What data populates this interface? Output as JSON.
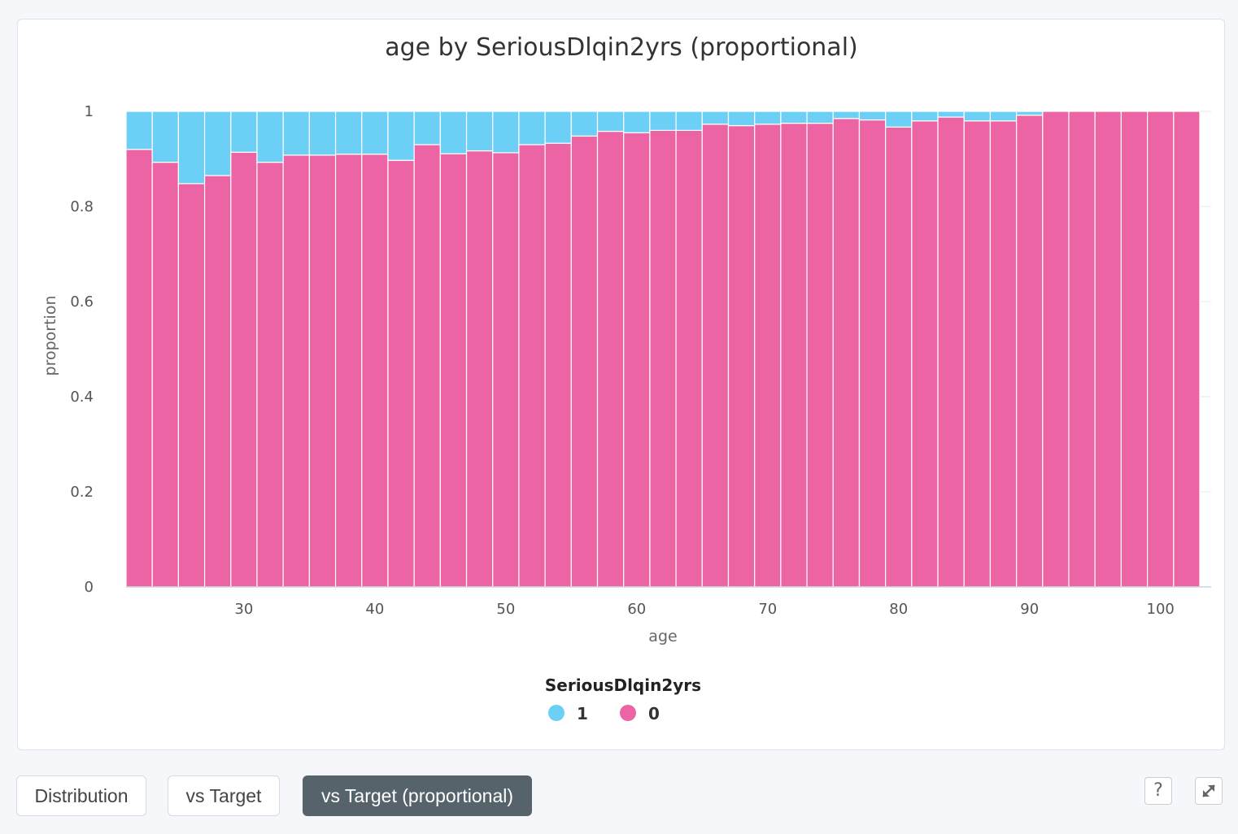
{
  "chart_data": {
    "type": "bar",
    "stacked": true,
    "normalized": true,
    "title": "age by SeriousDlqin2yrs (proportional)",
    "xlabel": "age",
    "ylabel": "proportion",
    "xlim": [
      21,
      103
    ],
    "ylim": [
      0,
      1
    ],
    "x_ticks": [
      30,
      40,
      50,
      60,
      70,
      80,
      90,
      100
    ],
    "y_ticks": [
      0,
      0.2,
      0.4,
      0.6,
      0.8,
      1
    ],
    "y_tick_labels": [
      "0",
      "0.2",
      "0.4",
      "0.6",
      "0.8",
      "1"
    ],
    "bin_width": 2,
    "bin_starts": [
      21,
      23,
      25,
      27,
      29,
      31,
      33,
      35,
      37,
      39,
      41,
      43,
      45,
      47,
      49,
      51,
      53,
      55,
      57,
      59,
      61,
      63,
      65,
      67,
      69,
      71,
      73,
      75,
      77,
      79,
      81,
      83,
      85,
      87,
      89,
      91,
      93,
      95,
      97,
      99,
      101
    ],
    "grid": true,
    "legend_title": "SeriousDlqin2yrs",
    "legend_position": "bottom",
    "series": [
      {
        "name": "0",
        "color": "#ec64a4",
        "values": [
          0.92,
          0.893,
          0.848,
          0.865,
          0.914,
          0.893,
          0.908,
          0.908,
          0.91,
          0.91,
          0.897,
          0.93,
          0.911,
          0.917,
          0.913,
          0.93,
          0.933,
          0.948,
          0.958,
          0.955,
          0.96,
          0.96,
          0.973,
          0.97,
          0.973,
          0.975,
          0.975,
          0.985,
          0.982,
          0.967,
          0.98,
          0.988,
          0.98,
          0.98,
          0.992,
          1.0,
          1.0,
          1.0,
          1.0,
          1.0,
          1.0
        ]
      },
      {
        "name": "1",
        "color": "#6ccff6",
        "values": [
          0.08,
          0.107,
          0.152,
          0.135,
          0.086,
          0.107,
          0.092,
          0.092,
          0.09,
          0.09,
          0.103,
          0.07,
          0.089,
          0.083,
          0.087,
          0.07,
          0.067,
          0.052,
          0.042,
          0.045,
          0.04,
          0.04,
          0.027,
          0.03,
          0.027,
          0.025,
          0.025,
          0.015,
          0.018,
          0.033,
          0.02,
          0.012,
          0.02,
          0.02,
          0.008,
          0.0,
          0.0,
          0.0,
          0.0,
          0.0,
          0.0
        ]
      }
    ],
    "legend_order": [
      "1",
      "0"
    ]
  },
  "buttons": {
    "distribution": "Distribution",
    "vs_target": "vs Target",
    "vs_target_proportional": "vs Target (proportional)",
    "active": "vs_target_proportional"
  },
  "icons": {
    "help": "help-icon",
    "expand": "expand-icon"
  }
}
